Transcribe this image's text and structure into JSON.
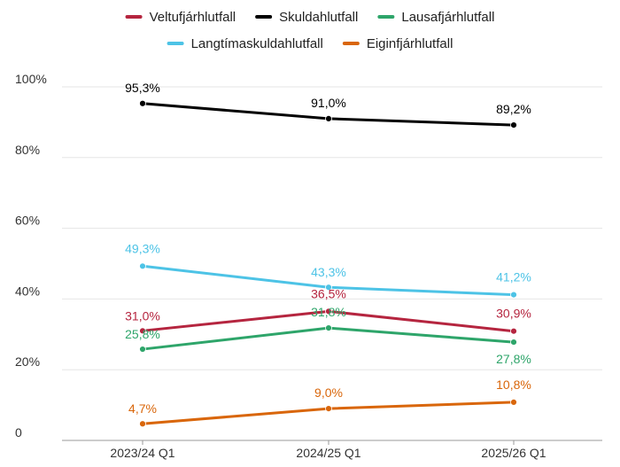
{
  "chart_data": {
    "type": "line",
    "title": "",
    "xlabel": "",
    "ylabel": "",
    "categories": [
      "2023/24 Q1",
      "2024/25 Q1",
      "2025/26 Q1"
    ],
    "ylim": [
      0,
      100
    ],
    "yticks": [
      {
        "value": 0,
        "label": "0"
      },
      {
        "value": 20,
        "label": "20%"
      },
      {
        "value": 40,
        "label": "40%"
      },
      {
        "value": 60,
        "label": "60%"
      },
      {
        "value": 80,
        "label": "80%"
      },
      {
        "value": 100,
        "label": "100%"
      }
    ],
    "grid": true,
    "legend_position": "top",
    "series": [
      {
        "key": "veltufjarhlutfall",
        "name": "Veltufjárhlutfall",
        "color": "#b5253f",
        "values": [
          31.0,
          36.5,
          30.9
        ],
        "labels": [
          "31,0%",
          "36,5%",
          "30,9%"
        ]
      },
      {
        "key": "skuldahlutfall",
        "name": "Skuldahlutfall",
        "color": "#000000",
        "values": [
          95.3,
          91.0,
          89.2
        ],
        "labels": [
          "95,3%",
          "91,0%",
          "89,2%"
        ]
      },
      {
        "key": "lausafjarhlutfall",
        "name": "Lausafjárhlutfall",
        "color": "#2ea56a",
        "values": [
          25.8,
          31.8,
          27.8
        ],
        "labels": [
          "25,8%",
          "31,8%",
          "27,8%"
        ]
      },
      {
        "key": "langtimaskuldahlutfall",
        "name": "Langtímaskuldahlutfall",
        "color": "#4dc3e6",
        "values": [
          49.3,
          43.3,
          41.2
        ],
        "labels": [
          "49,3%",
          "43,3%",
          "41,2%"
        ]
      },
      {
        "key": "eiginfjarhlutfall",
        "name": "Eiginfjárhlutfall",
        "color": "#d9660a",
        "values": [
          4.7,
          9.0,
          10.8
        ],
        "labels": [
          "4,7%",
          "9,0%",
          "10,8%"
        ]
      }
    ]
  }
}
